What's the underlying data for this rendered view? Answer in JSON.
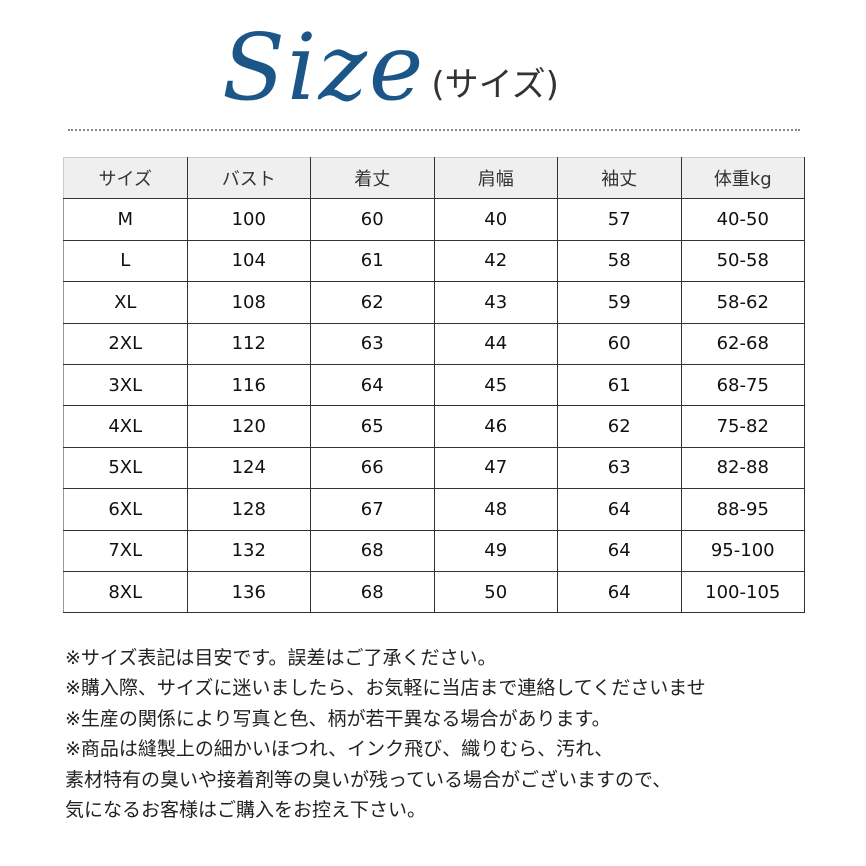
{
  "title": {
    "main": "Size",
    "sub": "(サイズ)"
  },
  "table": {
    "headers": [
      "サイズ",
      "バスト",
      "着丈",
      "肩幅",
      "袖丈",
      "体重kg"
    ],
    "rows": [
      [
        "M",
        "100",
        "60",
        "40",
        "57",
        "40-50"
      ],
      [
        "L",
        "104",
        "61",
        "42",
        "58",
        "50-58"
      ],
      [
        "XL",
        "108",
        "62",
        "43",
        "59",
        "58-62"
      ],
      [
        "2XL",
        "112",
        "63",
        "44",
        "60",
        "62-68"
      ],
      [
        "3XL",
        "116",
        "64",
        "45",
        "61",
        "68-75"
      ],
      [
        "4XL",
        "120",
        "65",
        "46",
        "62",
        "75-82"
      ],
      [
        "5XL",
        "124",
        "66",
        "47",
        "63",
        "82-88"
      ],
      [
        "6XL",
        "128",
        "67",
        "48",
        "64",
        "88-95"
      ],
      [
        "7XL",
        "132",
        "68",
        "49",
        "64",
        "95-100"
      ],
      [
        "8XL",
        "136",
        "68",
        "50",
        "64",
        "100-105"
      ]
    ]
  },
  "notes": [
    "※サイズ表記は目安です。誤差はご了承ください。",
    "※購入際、サイズに迷いましたら、お気軽に当店まで連絡してくださいませ",
    "※生産の関係により写真と色、柄が若干異なる場合があります。",
    "※商品は縫製上の細かいほつれ、インク飛び、織りむら、汚れ、",
    "素材特有の臭いや接着剤等の臭いが残っている場合がございますので、",
    "気になるお客様はご購入をお控え下さい。"
  ],
  "colors": {
    "title": "#1c5688",
    "header_bg": "#efefef",
    "border": "#333333"
  }
}
